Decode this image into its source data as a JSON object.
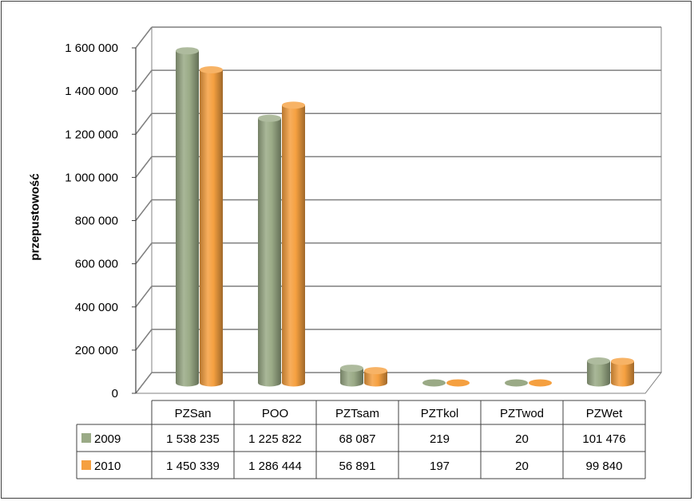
{
  "chart_data": {
    "type": "bar",
    "title": "",
    "xlabel": "",
    "ylabel": "przepustowość",
    "ylim": [
      0,
      1600000
    ],
    "yticks": [
      "0",
      "200 000",
      "400 000",
      "600 000",
      "800 000",
      "1 000 000",
      "1 200 000",
      "1 400 000",
      "1 600 000"
    ],
    "ytick_values": [
      0,
      200000,
      400000,
      600000,
      800000,
      1000000,
      1200000,
      1400000,
      1600000
    ],
    "categories": [
      "PZSan",
      "POO",
      "PZTsam",
      "PZTkol",
      "PZTwod",
      "PZWet"
    ],
    "series": [
      {
        "name": "2009",
        "color": "#9aaa86",
        "values": [
          1538235,
          1225822,
          68087,
          219,
          20,
          101476
        ],
        "labels": [
          "1 538 235",
          "1 225 822",
          "68 087",
          "219",
          "20",
          "101 476"
        ]
      },
      {
        "name": "2010",
        "color": "#f5a040",
        "values": [
          1450339,
          1286444,
          56891,
          197,
          20,
          99840
        ],
        "labels": [
          "1 450 339",
          "1 286 444",
          "56 891",
          "197",
          "20",
          "99 840"
        ]
      }
    ],
    "grid": true,
    "legend": "data-table"
  }
}
